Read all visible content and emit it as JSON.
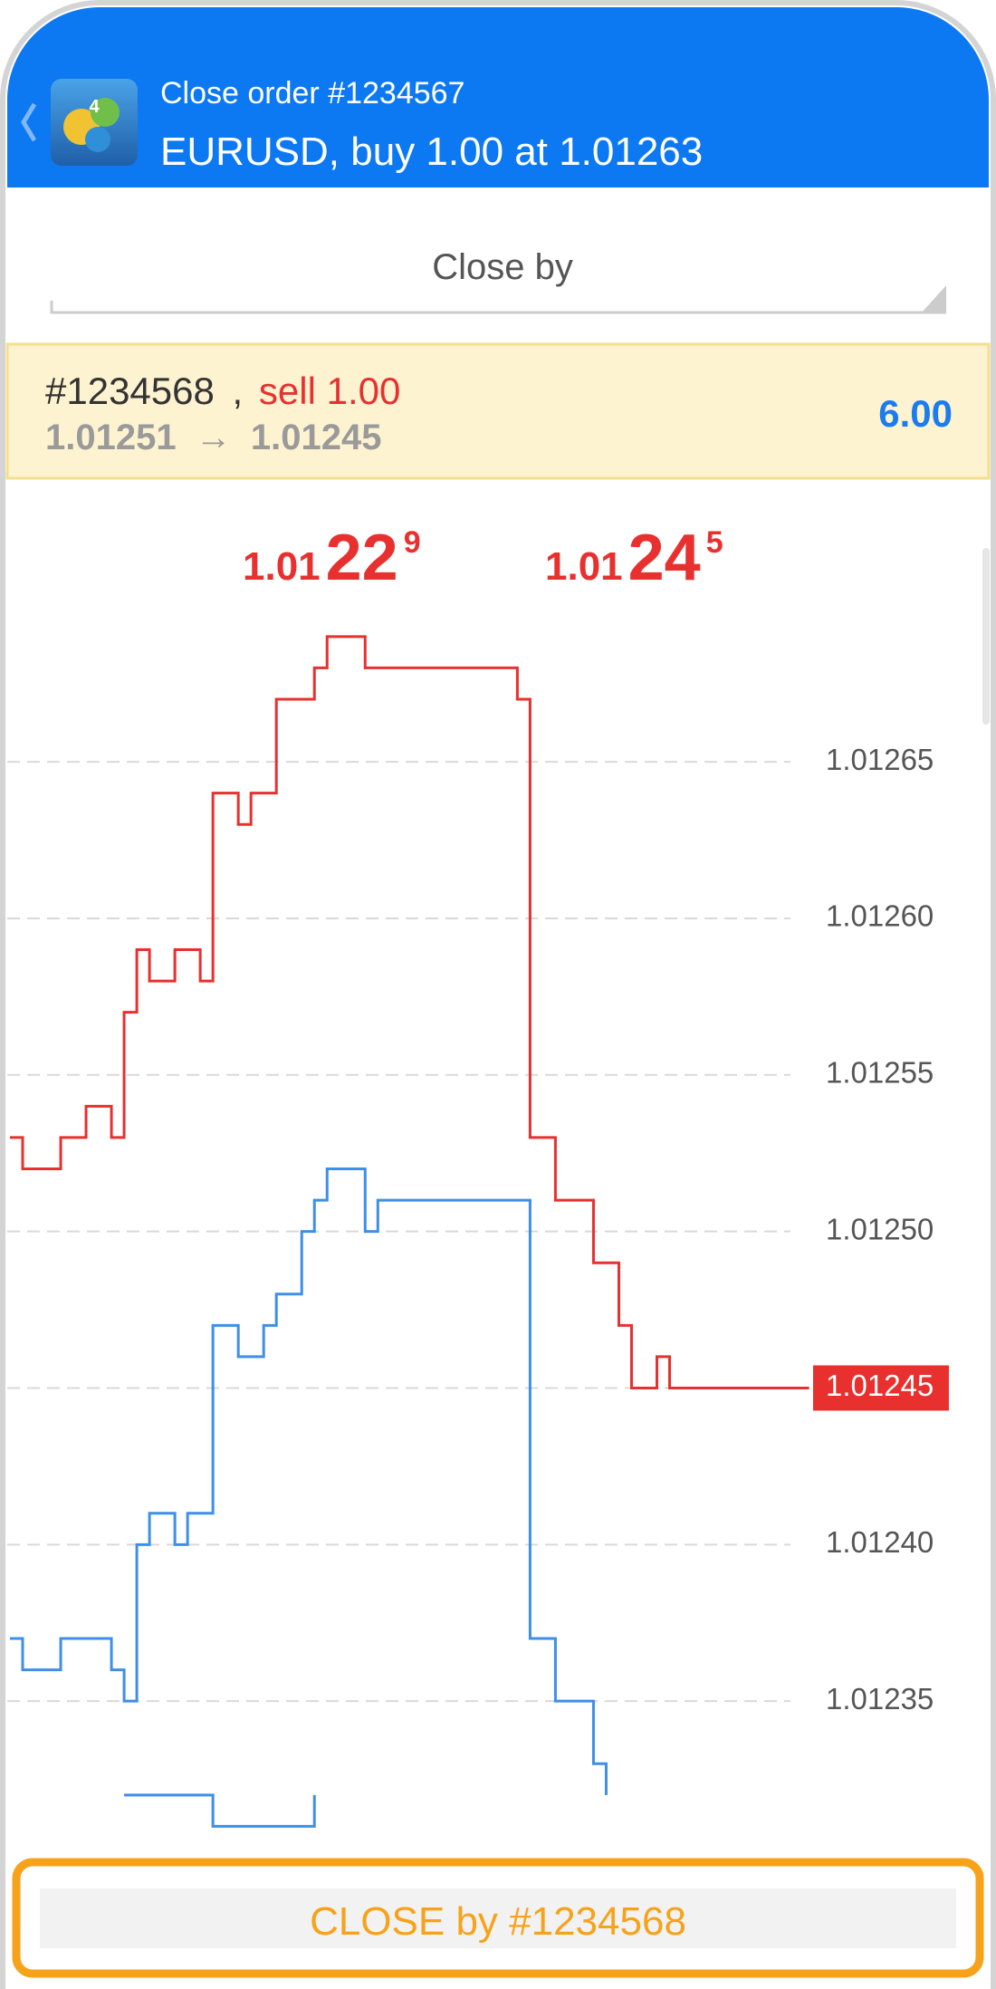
{
  "header": {
    "subtitle": "Close order #1234567",
    "title": "EURUSD, buy 1.00 at 1.01263"
  },
  "close_by_select": "Close by",
  "order_row": {
    "ticket": "#1234568",
    "separator": ",",
    "side": "sell 1.00",
    "open_price": "1.01251",
    "arrow": "→",
    "current_price": "1.01245",
    "profit": "6.00"
  },
  "chart_data": {
    "type": "line",
    "quotes": [
      {
        "prefix": "1.01",
        "big": "22",
        "small": "9"
      },
      {
        "prefix": "1.01",
        "big": "24",
        "small": "5"
      }
    ],
    "series": [
      {
        "color": "#e8302f",
        "values": [
          1.01253,
          1.01252,
          1.01252,
          1.01252,
          1.01253,
          1.01253,
          1.01254,
          1.01254,
          1.01253,
          1.01257,
          1.01259,
          1.01258,
          1.01258,
          1.01259,
          1.01259,
          1.01258,
          1.01264,
          1.01264,
          1.01263,
          1.01264,
          1.01264,
          1.01267,
          1.01267,
          1.01267,
          1.01268,
          1.01269,
          1.01269,
          1.01269,
          1.01268,
          1.01268,
          1.01268,
          1.01268,
          1.01268,
          1.01268,
          1.01268,
          1.01268,
          1.01268,
          1.01268,
          1.01268,
          1.01268,
          1.01267,
          1.01253,
          1.01253,
          1.01251,
          1.01251,
          1.01251,
          1.01249,
          1.01249,
          1.01247,
          1.01245,
          1.01245,
          1.01246,
          1.01245,
          1.01245,
          1.01245,
          1.01245,
          1.01245,
          1.01245,
          1.01245,
          1.01245,
          1.01245,
          1.01245,
          1.01245,
          1.01245
        ]
      },
      {
        "color": "#3d8fe8",
        "values": [
          1.01237,
          1.01236,
          1.01236,
          1.01236,
          1.01237,
          1.01237,
          1.01237,
          1.01237,
          1.01236,
          1.01235,
          1.0124,
          1.01241,
          1.01241,
          1.0124,
          1.01241,
          1.01241,
          1.01247,
          1.01247,
          1.01246,
          1.01246,
          1.01247,
          1.01248,
          1.01248,
          1.0125,
          1.01251,
          1.01252,
          1.01252,
          1.01252,
          1.0125,
          1.01251,
          1.01251,
          1.01251,
          1.01251,
          1.01251,
          1.01251,
          1.01251,
          1.01251,
          1.01251,
          1.01251,
          1.01251,
          1.01251,
          1.01237,
          1.01237,
          1.01235,
          1.01235,
          1.01235,
          1.01233,
          1.01232,
          null,
          null,
          null,
          null,
          null,
          null,
          null,
          null,
          null,
          null,
          null,
          null,
          null,
          null,
          null,
          null
        ]
      },
      {
        "color": "#3d8fe8",
        "values": [
          null,
          null,
          null,
          null,
          null,
          null,
          null,
          null,
          null,
          1.01232,
          1.01232,
          1.01232,
          1.01232,
          1.01232,
          1.01232,
          1.01232,
          1.01231,
          1.01231,
          1.01231,
          1.01231,
          1.01231,
          1.01231,
          1.01231,
          1.01231,
          1.01232,
          null,
          null,
          null,
          null,
          null,
          null,
          null,
          null,
          null,
          null,
          null,
          null,
          null,
          null,
          null,
          null,
          null,
          null,
          null,
          null,
          null,
          null,
          null,
          null,
          null,
          null,
          null,
          null,
          null,
          null,
          null,
          null,
          null,
          null,
          null,
          null,
          null,
          null,
          null
        ]
      }
    ],
    "ylim": [
      1.0123,
      1.01274
    ],
    "yticks": [
      1.01235,
      {
        "value": 1.0124,
        "label": "1.01240"
      },
      {
        "value": 1.0125,
        "label": "1.01250"
      },
      1.01255,
      {
        "value": 1.0126,
        "label": "1.01260"
      },
      1.01265
    ],
    "grid": true,
    "last_price": {
      "value": 1.01245,
      "label": "1.01245",
      "color": "#e8302f"
    }
  },
  "close_button": "CLOSE by #1234568"
}
